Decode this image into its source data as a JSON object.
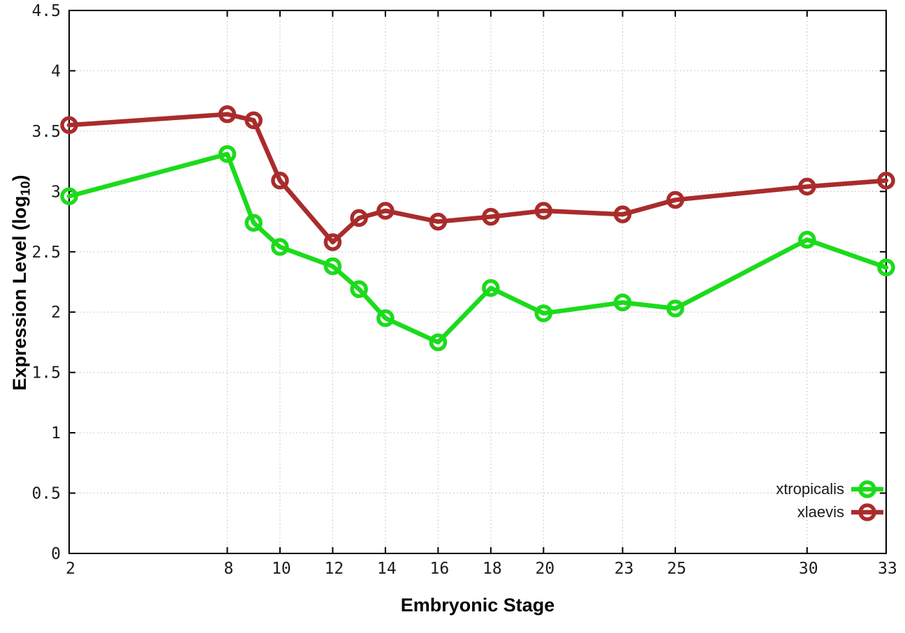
{
  "chart_data": {
    "type": "line",
    "xlabel": "Embryonic Stage",
    "ylabel": {
      "pre": "Expression Level (log",
      "sub": "10",
      "post": ")"
    },
    "x": [
      2,
      8,
      9,
      10,
      12,
      13,
      14,
      16,
      18,
      20,
      23,
      25,
      30,
      33
    ],
    "series": [
      {
        "name": "xtropicalis",
        "color": "#1bdb1b",
        "marker": "open-circle",
        "values": [
          2.96,
          3.31,
          2.74,
          2.54,
          2.38,
          2.19,
          1.95,
          1.75,
          2.2,
          1.99,
          2.08,
          2.03,
          2.6,
          2.37
        ]
      },
      {
        "name": "xlaevis",
        "color": "#a92c2c",
        "marker": "open-circle",
        "values": [
          3.55,
          3.64,
          3.59,
          3.09,
          2.58,
          2.78,
          2.84,
          2.75,
          2.79,
          2.84,
          2.81,
          2.93,
          3.04,
          3.09
        ]
      }
    ],
    "xticks": {
      "values": [
        2,
        8,
        10,
        12,
        14,
        16,
        18,
        20,
        23,
        25,
        30,
        33
      ],
      "labels": [
        "2",
        "8",
        "10",
        "12",
        "14",
        "16",
        "18",
        "20",
        "23",
        "25",
        "30",
        "33"
      ]
    },
    "yticks": {
      "values": [
        0,
        0.5,
        1,
        1.5,
        2,
        2.5,
        3,
        3.5,
        4,
        4.5
      ],
      "labels": [
        "0",
        "0.5",
        "1",
        "1.5",
        "2",
        "2.5",
        "3",
        "3.5",
        "4",
        "4.5"
      ]
    },
    "xlim": [
      2,
      33
    ],
    "ylim": [
      0,
      4.5
    ],
    "grid": true,
    "legend_position": "bottom-right"
  },
  "colors": {
    "grid": "#c9c9c9",
    "axis": "#000000",
    "tick_label": "#1c1c1c"
  }
}
